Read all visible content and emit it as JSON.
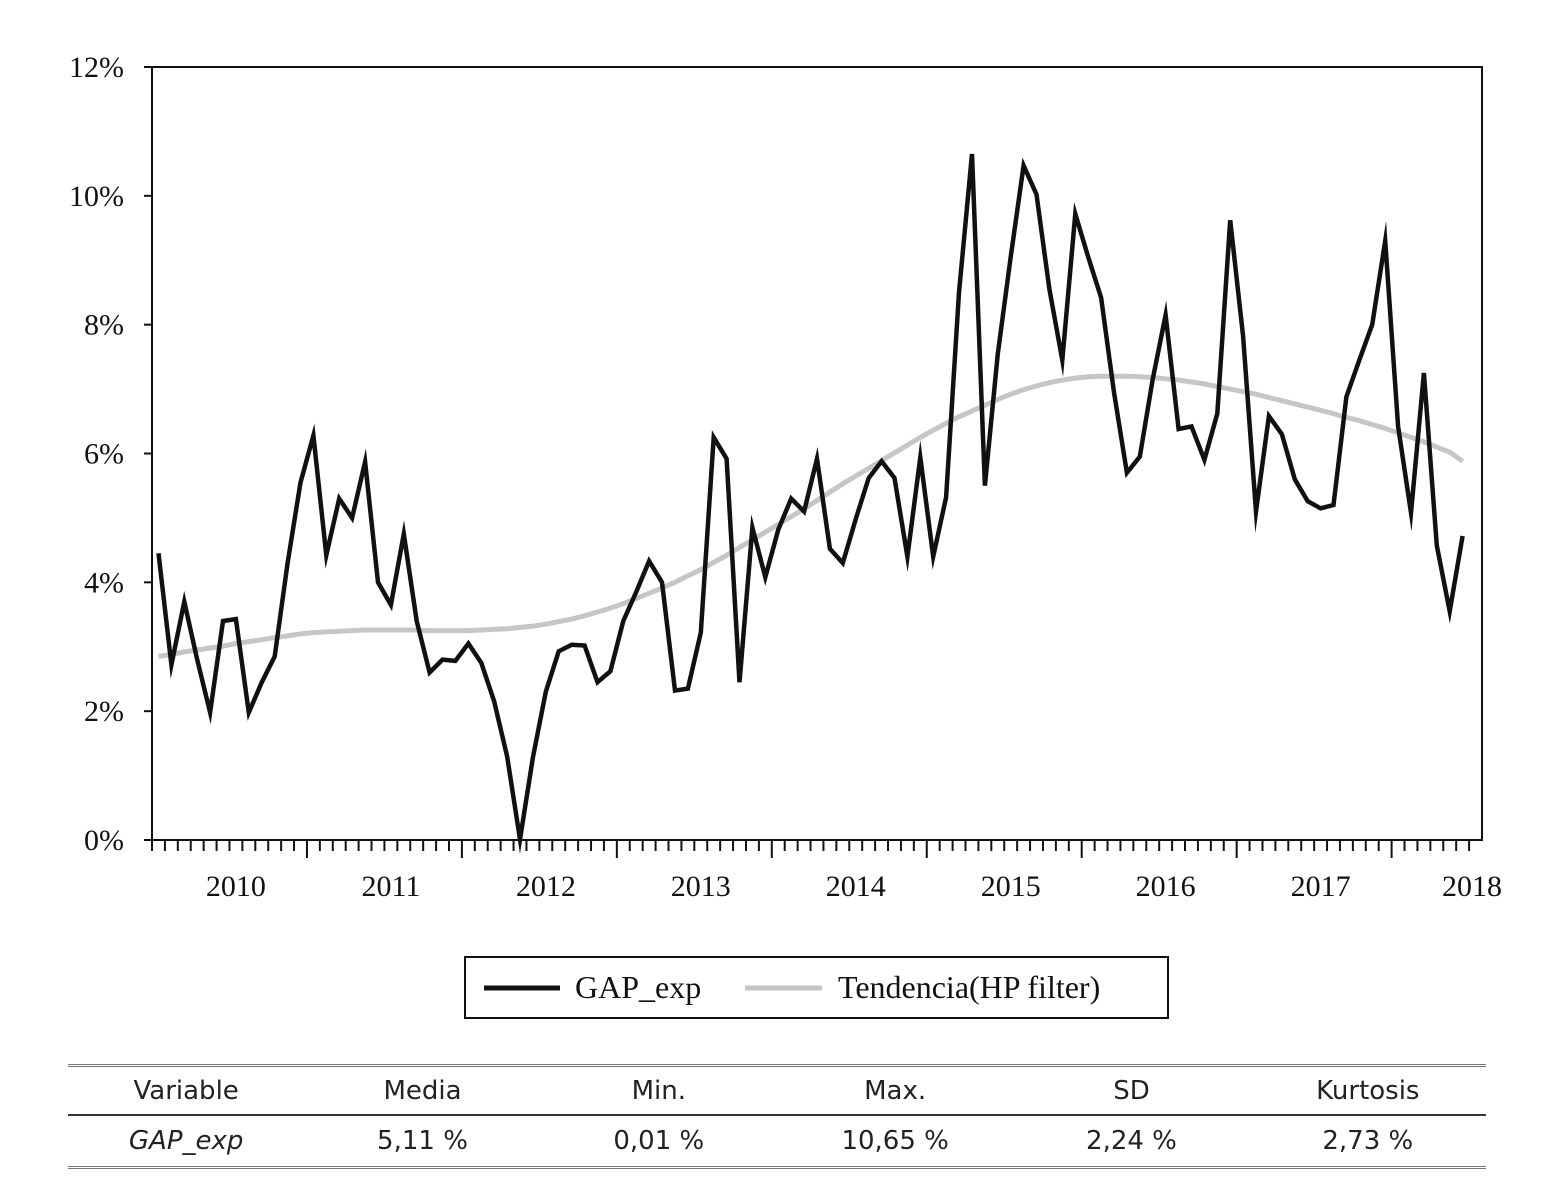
{
  "chart_data": {
    "type": "line",
    "x_start": "2010-01",
    "x_frequency": "monthly",
    "x_ticks": [
      "2010",
      "2011",
      "2012",
      "2013",
      "2014",
      "2015",
      "2016",
      "2017",
      "2018"
    ],
    "y_ticks": [
      "0%",
      "2%",
      "4%",
      "6%",
      "8%",
      "10%",
      "12%"
    ],
    "ylim": [
      0,
      12
    ],
    "y_unit": "%",
    "grid": false,
    "legend_position": "bottom",
    "series": [
      {
        "name": "GAP_exp",
        "color": "#111111",
        "values": [
          4.45,
          2.72,
          3.7,
          2.8,
          1.98,
          3.4,
          3.43,
          1.98,
          2.45,
          2.85,
          4.3,
          5.55,
          6.28,
          4.42,
          5.3,
          5.0,
          5.87,
          4.0,
          3.65,
          4.75,
          3.4,
          2.6,
          2.8,
          2.78,
          3.05,
          2.75,
          2.15,
          1.3,
          0.01,
          1.28,
          2.3,
          2.93,
          3.03,
          3.02,
          2.45,
          2.62,
          3.4,
          3.85,
          4.33,
          4.0,
          2.32,
          2.35,
          3.22,
          6.25,
          5.92,
          2.45,
          4.85,
          4.08,
          4.82,
          5.3,
          5.1,
          5.92,
          4.52,
          4.3,
          4.98,
          5.62,
          5.88,
          5.62,
          4.4,
          5.94,
          4.4,
          5.32,
          8.5,
          10.65,
          5.5,
          7.55,
          9.05,
          10.47,
          10.02,
          8.55,
          7.45,
          9.72,
          9.05,
          8.42,
          6.95,
          5.7,
          5.95,
          7.15,
          8.15,
          6.38,
          6.42,
          5.9,
          6.62,
          9.62,
          7.82,
          5.1,
          6.58,
          6.3,
          5.6,
          5.26,
          5.15,
          5.2,
          6.88,
          7.45,
          8.0,
          9.3,
          6.42,
          5.08,
          7.25,
          4.57,
          3.55,
          4.72
        ]
      },
      {
        "name": "Tendencia(HP filter)",
        "color": "#c6c6c6",
        "values": [
          2.85,
          2.88,
          2.92,
          2.95,
          2.98,
          3.01,
          3.05,
          3.08,
          3.11,
          3.14,
          3.17,
          3.2,
          3.22,
          3.23,
          3.24,
          3.25,
          3.26,
          3.26,
          3.26,
          3.26,
          3.26,
          3.25,
          3.25,
          3.25,
          3.25,
          3.26,
          3.27,
          3.28,
          3.3,
          3.32,
          3.35,
          3.39,
          3.43,
          3.48,
          3.54,
          3.6,
          3.67,
          3.75,
          3.83,
          3.91,
          4.0,
          4.1,
          4.2,
          4.31,
          4.42,
          4.54,
          4.66,
          4.78,
          4.9,
          5.02,
          5.14,
          5.27,
          5.4,
          5.53,
          5.65,
          5.77,
          5.89,
          6.01,
          6.13,
          6.25,
          6.36,
          6.47,
          6.57,
          6.66,
          6.75,
          6.84,
          6.92,
          6.99,
          7.05,
          7.1,
          7.14,
          7.17,
          7.19,
          7.2,
          7.2,
          7.2,
          7.19,
          7.18,
          7.16,
          7.14,
          7.11,
          7.08,
          7.04,
          7.0,
          6.96,
          6.92,
          6.87,
          6.82,
          6.77,
          6.72,
          6.67,
          6.62,
          6.56,
          6.51,
          6.45,
          6.39,
          6.32,
          6.25,
          6.18,
          6.1,
          6.02,
          5.88
        ]
      }
    ]
  },
  "legend": {
    "items": [
      {
        "label": "GAP_exp",
        "color": "#111111"
      },
      {
        "label": "Tendencia(HP filter)",
        "color": "#c6c6c6"
      }
    ]
  },
  "stats_table": {
    "headers": [
      "Variable",
      "Media",
      "Min.",
      "Max.",
      "SD",
      "Kurtosis"
    ],
    "row": [
      "GAP_exp",
      "5,11 %",
      "0,01 %",
      "10,65 %",
      "2,24 %",
      "2,73 %"
    ]
  }
}
